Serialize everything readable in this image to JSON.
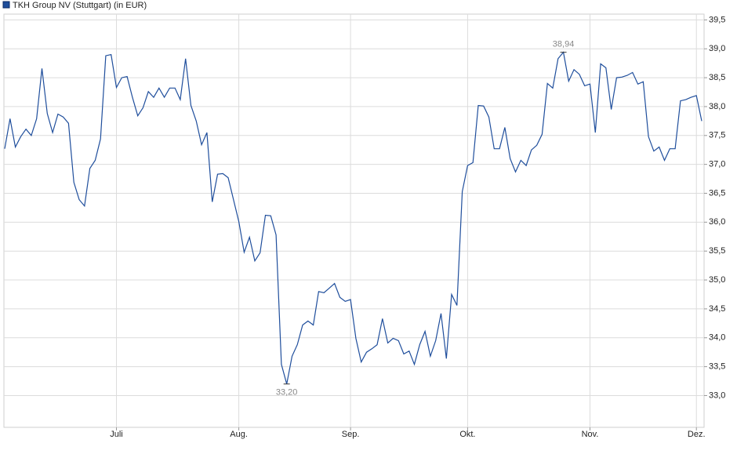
{
  "chart_data": {
    "type": "line",
    "series": [
      {
        "name": "TKH Group NV (Stuttgart) (in EUR)",
        "color": "#1f4e9c",
        "values": [
          37.27,
          37.79,
          37.3,
          37.48,
          37.61,
          37.5,
          37.79,
          38.66,
          37.88,
          37.55,
          37.87,
          37.82,
          37.71,
          36.69,
          36.39,
          36.28,
          36.93,
          37.07,
          37.44,
          38.88,
          38.9,
          38.33,
          38.5,
          38.52,
          38.16,
          37.84,
          37.98,
          38.26,
          38.16,
          38.32,
          38.16,
          38.32,
          38.32,
          38.12,
          38.83,
          38.02,
          37.75,
          37.34,
          37.55,
          36.35,
          36.83,
          36.84,
          36.77,
          36.39,
          36.01,
          35.48,
          35.74,
          35.33,
          35.47,
          36.12,
          36.11,
          35.78,
          33.54,
          33.2,
          33.68,
          33.88,
          34.22,
          34.29,
          34.22,
          34.8,
          34.78,
          34.86,
          34.94,
          34.7,
          34.63,
          34.66,
          33.99,
          33.58,
          33.75,
          33.81,
          33.88,
          34.33,
          33.91,
          33.99,
          33.95,
          33.72,
          33.77,
          33.54,
          33.88,
          34.11,
          33.68,
          33.95,
          34.42,
          33.64,
          34.75,
          34.56,
          36.53,
          36.98,
          37.03,
          38.02,
          38.01,
          37.82,
          37.27,
          37.27,
          37.64,
          37.1,
          36.87,
          37.07,
          36.98,
          37.25,
          37.33,
          37.52,
          38.4,
          38.32,
          38.83,
          38.94,
          38.44,
          38.64,
          38.56,
          38.36,
          38.39,
          37.55,
          38.74,
          38.67,
          37.95,
          38.5,
          38.51,
          38.54,
          38.59,
          38.39,
          38.43,
          37.48,
          37.23,
          37.3,
          37.07,
          37.27,
          37.27,
          38.1,
          38.12,
          38.16,
          38.19,
          37.75
        ],
        "value_labels": [
          null,
          null,
          null,
          null,
          null,
          null,
          null,
          null,
          null,
          null,
          null,
          null,
          null,
          null,
          null,
          null,
          null,
          null,
          null,
          null,
          null,
          null,
          null,
          null,
          null,
          null,
          null,
          null,
          null,
          null,
          null,
          null,
          null,
          null,
          null,
          null,
          null,
          null,
          null,
          null,
          null,
          null,
          null,
          null,
          null,
          null,
          null,
          null,
          null,
          null,
          null,
          null,
          null,
          "33,20",
          null,
          null,
          null,
          null,
          null,
          null,
          null,
          null,
          null,
          null,
          null,
          null,
          null,
          null,
          null,
          null,
          null,
          null,
          null,
          null,
          null,
          null,
          null,
          null,
          null,
          null,
          null,
          null,
          null,
          null,
          null,
          null,
          null,
          null,
          null,
          null,
          null,
          null,
          null,
          null,
          null,
          null,
          null,
          null,
          null,
          null,
          null,
          null,
          null,
          null,
          null,
          "38,94",
          null,
          null,
          null,
          null,
          null,
          null,
          null,
          null,
          null,
          null,
          null,
          null,
          null,
          null,
          null,
          null,
          null,
          null,
          null,
          null,
          null,
          null,
          null,
          null,
          null,
          null
        ]
      }
    ],
    "categories": [
      null,
      null,
      null,
      null,
      null,
      null,
      null,
      null,
      null,
      null,
      null,
      null,
      null,
      null,
      null,
      null,
      null,
      null,
      null,
      null,
      null,
      "Juli",
      null,
      null,
      null,
      null,
      null,
      null,
      null,
      null,
      null,
      null,
      null,
      null,
      null,
      null,
      null,
      null,
      null,
      null,
      null,
      null,
      null,
      null,
      "Aug.",
      null,
      null,
      null,
      null,
      null,
      null,
      null,
      null,
      null,
      null,
      null,
      null,
      null,
      null,
      null,
      null,
      null,
      null,
      null,
      null,
      "Sep.",
      null,
      null,
      null,
      null,
      null,
      null,
      null,
      null,
      null,
      null,
      null,
      null,
      null,
      null,
      null,
      null,
      null,
      null,
      null,
      null,
      null,
      "Okt.",
      null,
      null,
      null,
      null,
      null,
      null,
      null,
      null,
      null,
      null,
      null,
      null,
      null,
      null,
      null,
      null,
      null,
      null,
      null,
      null,
      null,
      null,
      "Nov.",
      null,
      null,
      null,
      null,
      null,
      null,
      null,
      null,
      null,
      null,
      null,
      null,
      null,
      null,
      null,
      null,
      null,
      null,
      null,
      "Dez.",
      null
    ],
    "ylim": [
      32.45,
      39.6
    ],
    "yticks": [
      {
        "value": 33,
        "label": "33,0"
      },
      {
        "value": 33.5,
        "label": "33,5"
      },
      {
        "value": 34,
        "label": "34,0"
      },
      {
        "value": 34.5,
        "label": "34,5"
      },
      {
        "value": 35,
        "label": "35,0"
      },
      {
        "value": 35.5,
        "label": "35,5"
      },
      {
        "value": 36,
        "label": "36,0"
      },
      {
        "value": 36.5,
        "label": "36,5"
      },
      {
        "value": 37,
        "label": "37,0"
      },
      {
        "value": 37.5,
        "label": "37,5"
      },
      {
        "value": 38,
        "label": "38,0"
      },
      {
        "value": 38.5,
        "label": "38,5"
      },
      {
        "value": 39,
        "label": "39,0"
      },
      {
        "value": 39.5,
        "label": "39,5"
      }
    ],
    "grid": true
  }
}
